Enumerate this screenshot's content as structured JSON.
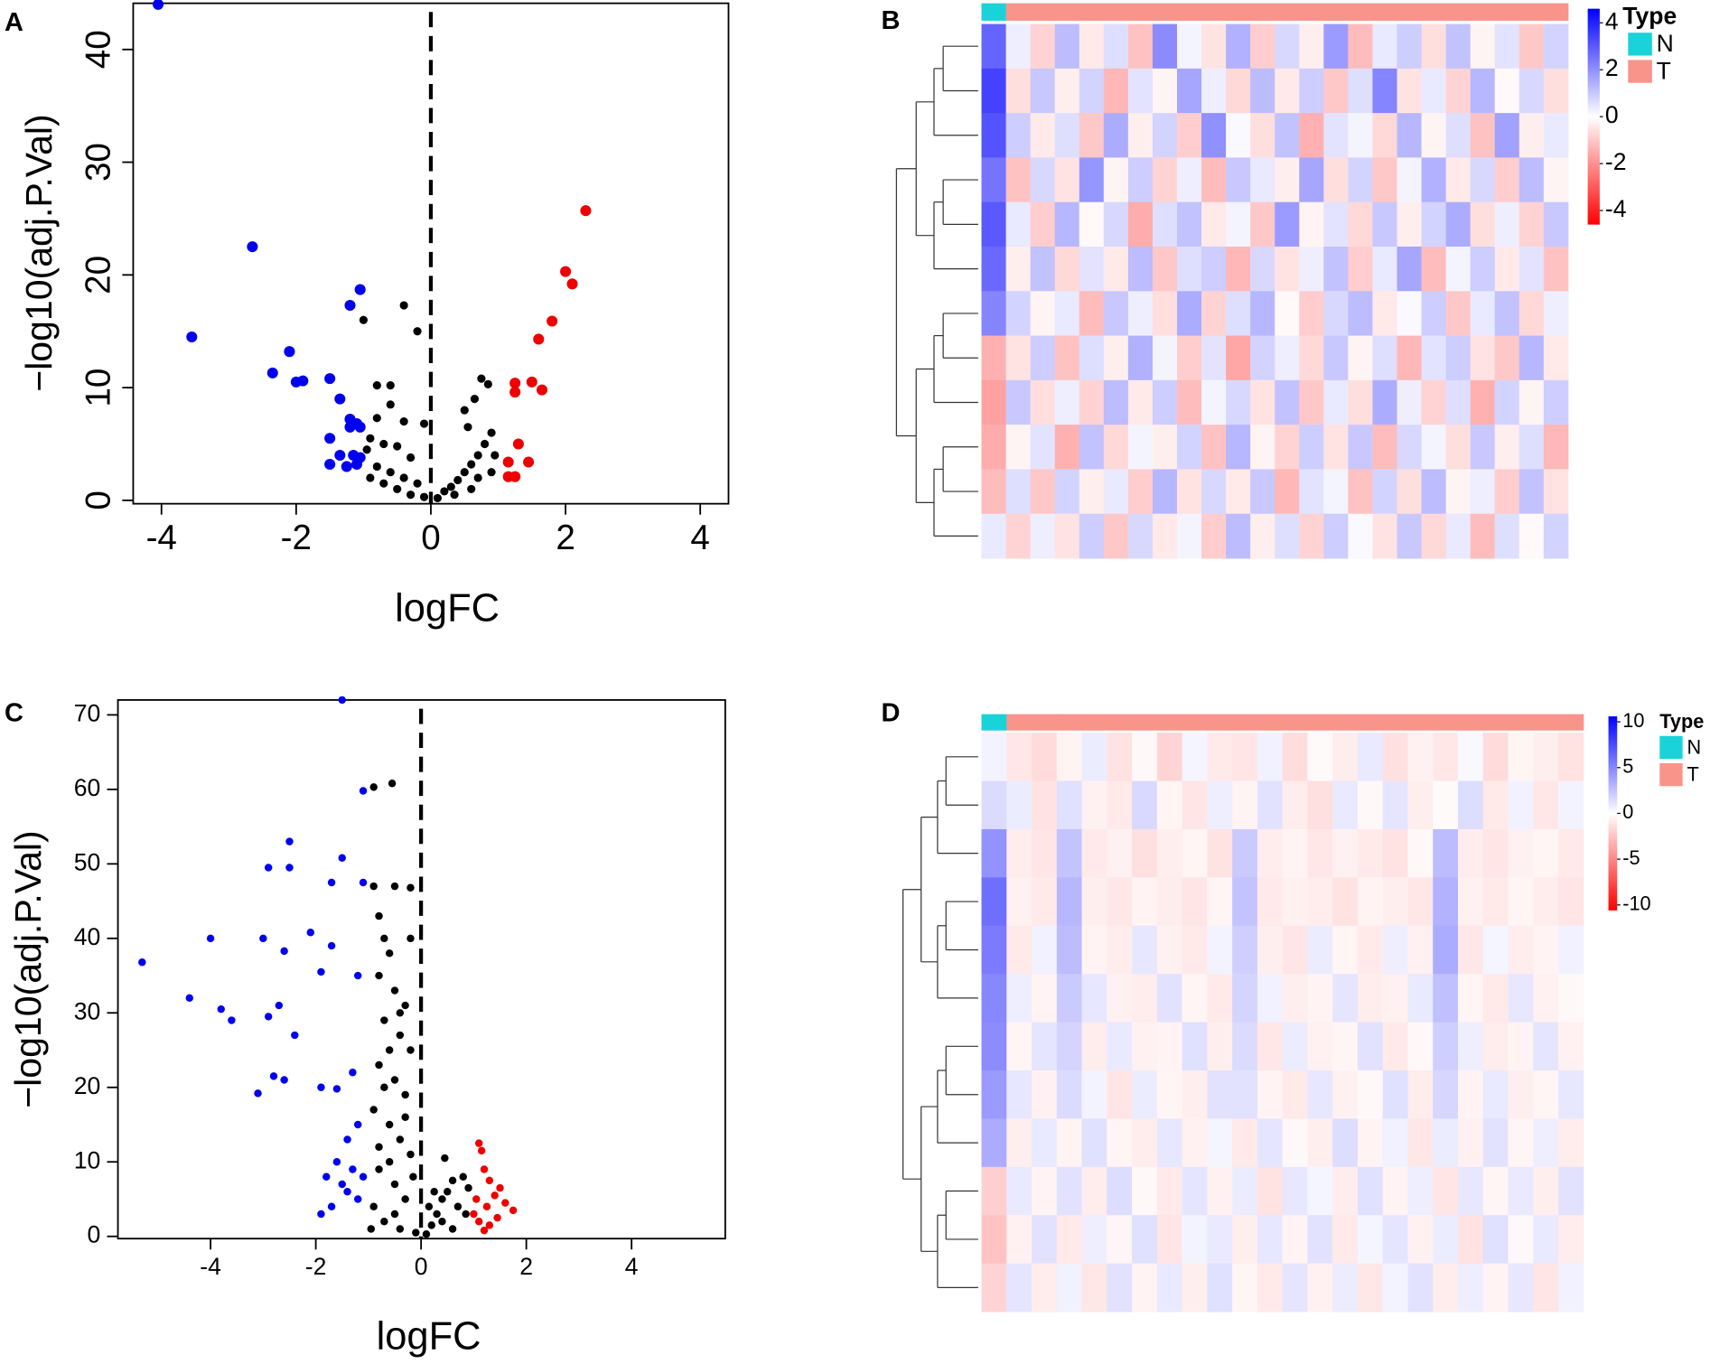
{
  "chart_data": [
    {
      "type": "scatter",
      "panel": "A",
      "x_label": "logFC",
      "y_label": "−log10(adj.P.Val)",
      "xlim": [
        -4.42,
        4.42
      ],
      "ylim": [
        -0.3,
        44.1
      ],
      "xticks": [
        -4,
        -2,
        0,
        2,
        4
      ],
      "yticks": [
        0,
        10,
        20,
        30,
        40
      ],
      "vline": 0,
      "series": [
        {
          "color": "#000000",
          "x": [
            -1.0,
            -0.4,
            -0.2,
            -0.6,
            -0.8,
            -0.6,
            -0.8,
            -0.4,
            -0.1,
            -0.9,
            -0.7,
            -0.5,
            -0.3,
            -0.8,
            -0.6,
            -0.4,
            -0.2,
            -0.5,
            -0.3,
            -0.1,
            -0.7,
            0.1,
            0.2,
            0.3,
            0.4,
            0.5,
            0.6,
            0.7,
            0.8,
            0.9,
            0.75,
            0.85,
            0.65,
            0.5,
            0.55,
            0.95,
            0.7,
            0.35,
            0.6,
            -0.9,
            -0.95,
            0.9
          ],
          "values": [
            16.0,
            17.3,
            15.0,
            10.2,
            10.2,
            8.5,
            7.3,
            7.0,
            6.8,
            5.5,
            5.0,
            4.8,
            3.8,
            3.0,
            2.5,
            2.0,
            1.5,
            1.0,
            0.5,
            0.3,
            1.5,
            0.2,
            0.8,
            1.2,
            1.8,
            2.5,
            3.2,
            4.0,
            5.0,
            6.0,
            10.8,
            10.3,
            9.0,
            8.0,
            6.5,
            4.0,
            2.0,
            0.5,
            1.0,
            2.0,
            4.5,
            2.5
          ]
        },
        {
          "color": "#0000ee",
          "x": [
            -4.05,
            -2.65,
            -3.55,
            -1.2,
            -1.05,
            -2.1,
            -2.35,
            -2.0,
            -1.9,
            -1.5,
            -1.35,
            -1.2,
            -1.1,
            -1.05,
            -1.2,
            -1.5,
            -1.35,
            -1.15,
            -1.05,
            -1.5,
            -1.25,
            -1.1
          ],
          "values": [
            44,
            22.5,
            14.5,
            17.3,
            18.7,
            13.2,
            11.3,
            10.5,
            10.6,
            10.8,
            9.0,
            7.2,
            6.8,
            6.5,
            6.5,
            5.5,
            4.0,
            4.0,
            3.8,
            3.2,
            3.0,
            3.2
          ]
        },
        {
          "color": "#ee0000",
          "x": [
            2.3,
            2.0,
            2.1,
            1.8,
            1.6,
            1.25,
            1.25,
            1.5,
            1.65,
            1.3,
            1.45,
            1.15,
            1.15,
            1.25
          ],
          "values": [
            25.7,
            20.3,
            19.2,
            15.9,
            14.3,
            10.4,
            9.6,
            10.5,
            9.8,
            5.0,
            3.4,
            3.4,
            2.1,
            2.1
          ]
        }
      ]
    },
    {
      "type": "heatmap",
      "panel": "B",
      "zlim": [
        -4.6,
        4.6
      ],
      "zticks": [
        4,
        2,
        0,
        -2,
        -4
      ],
      "colors": {
        "low": "#ff0000",
        "mid": "#ffffff",
        "high": "#0000ff"
      },
      "legend_title": "Type",
      "legend": [
        {
          "label": "N",
          "color": "#19d3d9"
        },
        {
          "label": "T",
          "color": "#f8948a"
        }
      ],
      "column_type": [
        "N",
        "T",
        "T",
        "T",
        "T",
        "T",
        "T",
        "T",
        "T",
        "T",
        "T",
        "T",
        "T",
        "T",
        "T",
        "T",
        "T",
        "T",
        "T",
        "T",
        "T",
        "T",
        "T",
        "T"
      ],
      "matrix": [
        [
          2.8,
          0.3,
          -0.8,
          1.2,
          -0.4,
          0.6,
          -1.1,
          2.1,
          0.2,
          -0.5,
          1.4,
          -0.9,
          0.7,
          -0.3,
          1.8,
          -1.2,
          0.4,
          0.9,
          -0.6,
          1.1,
          -0.2,
          0.5,
          -1.0,
          0.8
        ],
        [
          3.4,
          -0.6,
          1.0,
          -0.3,
          0.8,
          -1.3,
          0.5,
          -0.2,
          1.6,
          0.3,
          -0.7,
          1.2,
          -0.4,
          0.9,
          -1.0,
          0.6,
          2.2,
          -0.5,
          0.4,
          -0.8,
          1.3,
          -0.1,
          0.7,
          -0.6
        ],
        [
          3.1,
          0.9,
          -0.4,
          0.6,
          -1.0,
          1.5,
          -0.3,
          0.8,
          -0.9,
          2.0,
          0.1,
          -0.6,
          1.1,
          -1.4,
          0.5,
          0.2,
          -0.7,
          1.3,
          -0.2,
          0.6,
          -1.1,
          1.7,
          -0.3,
          0.4
        ],
        [
          2.5,
          -1.1,
          0.7,
          -0.5,
          1.9,
          -0.2,
          0.9,
          -0.8,
          0.3,
          -1.2,
          1.0,
          0.4,
          -0.3,
          1.6,
          -0.6,
          0.8,
          -1.0,
          0.2,
          1.4,
          -0.4,
          0.7,
          -0.9,
          1.2,
          -0.2
        ],
        [
          3.0,
          0.4,
          -0.9,
          1.3,
          -0.1,
          0.7,
          -1.5,
          0.6,
          1.1,
          -0.4,
          0.2,
          -1.0,
          1.8,
          -0.2,
          0.5,
          -0.7,
          1.0,
          -0.3,
          0.8,
          1.5,
          -0.6,
          0.3,
          -0.8,
          1.0
        ],
        [
          2.7,
          -0.3,
          1.1,
          -0.7,
          0.5,
          -0.4,
          1.2,
          -1.0,
          0.6,
          0.9,
          -1.3,
          0.7,
          -0.5,
          0.3,
          1.1,
          -0.9,
          0.4,
          1.6,
          -1.2,
          0.2,
          0.9,
          -0.4,
          0.5,
          -1.1
        ],
        [
          2.2,
          0.8,
          -0.2,
          0.4,
          -1.2,
          1.0,
          0.3,
          -0.6,
          1.5,
          -0.8,
          0.6,
          1.3,
          -0.1,
          -0.9,
          0.7,
          1.2,
          -0.4,
          0.1,
          0.9,
          -1.0,
          0.4,
          1.1,
          -0.7,
          0.3
        ],
        [
          -1.4,
          -0.5,
          0.9,
          -1.1,
          0.6,
          -0.3,
          1.4,
          0.2,
          -0.9,
          0.5,
          -1.6,
          0.8,
          0.3,
          -0.7,
          1.0,
          -0.2,
          0.6,
          -1.3,
          0.5,
          0.9,
          -0.5,
          -1.0,
          1.3,
          -0.4
        ],
        [
          -1.7,
          1.0,
          -0.6,
          0.3,
          -0.8,
          1.2,
          -0.4,
          0.9,
          -1.2,
          0.2,
          0.7,
          -0.5,
          1.1,
          -1.0,
          0.4,
          -0.6,
          1.5,
          0.3,
          -0.8,
          0.6,
          -1.4,
          0.8,
          -0.2,
          0.9
        ],
        [
          -1.5,
          -0.2,
          0.5,
          -1.4,
          1.1,
          -0.7,
          0.2,
          -0.3,
          0.8,
          -1.1,
          1.3,
          -0.2,
          -0.8,
          0.9,
          -0.5,
          1.0,
          -1.2,
          0.7,
          0.2,
          -0.6,
          1.0,
          -0.3,
          0.6,
          -1.3
        ],
        [
          -1.2,
          0.6,
          -1.0,
          0.8,
          -0.3,
          0.4,
          -0.9,
          1.3,
          -0.5,
          0.7,
          -0.4,
          1.0,
          -1.3,
          0.5,
          0.2,
          -1.1,
          0.8,
          -0.6,
          1.2,
          -0.2,
          0.3,
          -0.9,
          1.1,
          -0.5
        ],
        [
          0.4,
          -0.8,
          0.3,
          -0.5,
          0.9,
          -1.0,
          0.7,
          -0.4,
          0.2,
          -0.9,
          1.2,
          -0.3,
          0.6,
          -0.8,
          0.9,
          0.1,
          -0.5,
          1.0,
          -0.7,
          0.4,
          -1.2,
          0.6,
          -0.1,
          0.8
        ]
      ]
    },
    {
      "type": "scatter",
      "panel": "C",
      "x_label": "logFC",
      "y_label": "−log10(adj.P.Val)",
      "xlim": [
        -5.76,
        5.78
      ],
      "ylim": [
        -0.3,
        72
      ],
      "xticks": [
        -4,
        -2,
        0,
        2,
        4
      ],
      "yticks": [
        0,
        10,
        20,
        30,
        40,
        50,
        60,
        70
      ],
      "vline": 0,
      "series": [
        {
          "color": "#000000",
          "x": [
            -0.9,
            -0.55,
            -0.9,
            -0.5,
            -0.2,
            -0.8,
            -0.7,
            -0.2,
            -0.6,
            -0.8,
            -0.5,
            -0.3,
            -0.7,
            -0.4,
            -0.2,
            -0.8,
            -0.5,
            -0.3,
            -0.9,
            -0.6,
            -0.4,
            -0.2,
            -0.8,
            -0.5,
            -0.3,
            -0.9,
            -0.7,
            -0.4,
            -0.1,
            -0.6,
            -0.7,
            -0.4,
            -0.6,
            -0.3,
            -0.8,
            -0.5,
            0.1,
            0.2,
            0.3,
            0.4,
            0.5,
            0.6,
            0.8,
            0.7,
            0.4,
            0.9,
            0.45,
            0.25,
            0.6,
            0.85,
            0.15,
            -0.15,
            -0.95
          ],
          "values": [
            60.3,
            60.8,
            47,
            47,
            46.8,
            43,
            40,
            40,
            38,
            35,
            33,
            31,
            29,
            27,
            25,
            23,
            21,
            19,
            17,
            15,
            13,
            11,
            9,
            7,
            5,
            4,
            2,
            1,
            0.5,
            10,
            20,
            30,
            25,
            16,
            12,
            3,
            0.3,
            1.5,
            3,
            5,
            6,
            7.5,
            8,
            4,
            2,
            6.5,
            10.5,
            6,
            1,
            3,
            4,
            8,
            1
          ]
        },
        {
          "color": "#0000ee",
          "x": [
            -1.5,
            -1.1,
            -2.5,
            -2.9,
            -2.5,
            -1.5,
            -1.1,
            -1.7,
            -3.0,
            -4.0,
            -5.3,
            -2.1,
            -1.7,
            -2.6,
            -1.9,
            -1.2,
            -4.4,
            -3.8,
            -3.6,
            -2.9,
            -2.7,
            -2.4,
            -3.1,
            -2.8,
            -2.6,
            -1.9,
            -1.6,
            -1.3,
            -1.2,
            -1.4,
            -1.6,
            -1.8,
            -1.4,
            -1.2,
            -1.7,
            -1.9,
            -1.1,
            -1.3,
            -1.5
          ],
          "values": [
            72,
            59.8,
            53,
            49.5,
            49.5,
            50.8,
            47.5,
            47.5,
            40,
            40,
            36.8,
            40.8,
            39.0,
            38.3,
            35.5,
            35,
            32,
            30.5,
            29,
            29.5,
            31,
            27,
            19.2,
            21.5,
            21,
            20,
            19.8,
            22,
            15,
            13,
            10,
            8,
            6,
            5,
            4,
            3,
            8,
            9,
            7
          ]
        },
        {
          "color": "#ee0000",
          "x": [
            1.1,
            1.15,
            1.2,
            1.3,
            1.5,
            1.6,
            1.75,
            1.45,
            1.1,
            1.3,
            1.05,
            1.25,
            1.4,
            1.0,
            1.2
          ],
          "values": [
            12.5,
            11.5,
            9.0,
            7.5,
            6.5,
            4.5,
            3.5,
            2.5,
            2.0,
            1.5,
            5,
            4,
            5.5,
            3,
            0.8
          ]
        }
      ]
    },
    {
      "type": "heatmap",
      "panel": "D",
      "zlim": [
        -10.6,
        10.6
      ],
      "zticks": [
        10,
        5,
        0,
        -5,
        -10
      ],
      "colors": {
        "low": "#ff0000",
        "mid": "#ffffff",
        "high": "#0000ff"
      },
      "legend_title": "Type",
      "legend": [
        {
          "label": "N",
          "color": "#19d3d9"
        },
        {
          "label": "T",
          "color": "#f8948a"
        }
      ],
      "column_type": [
        "N",
        "T",
        "T",
        "T",
        "T",
        "T",
        "T",
        "T",
        "T",
        "T",
        "T",
        "T",
        "T",
        "T",
        "T",
        "T",
        "T",
        "T",
        "T",
        "T",
        "T",
        "T",
        "T",
        "T"
      ],
      "matrix": [
        [
          0.5,
          -1.0,
          -1.5,
          -0.5,
          0.8,
          -1.2,
          -0.3,
          -1.8,
          0.4,
          -0.9,
          -1.1,
          0.6,
          -1.4,
          -0.2,
          -0.8,
          0.9,
          -1.3,
          -0.6,
          -1.0,
          0.3,
          -1.5,
          -0.4,
          -0.7,
          -1.2
        ],
        [
          1.5,
          0.8,
          -1.2,
          1.3,
          -0.6,
          -0.9,
          1.6,
          -0.4,
          -1.1,
          0.7,
          -0.5,
          1.2,
          -0.8,
          -1.3,
          0.9,
          -0.3,
          1.1,
          -0.7,
          -0.2,
          1.4,
          -0.9,
          0.6,
          -1.0,
          0.5
        ],
        [
          4.5,
          -0.8,
          -1.1,
          2.5,
          -0.9,
          -0.6,
          -1.3,
          -0.7,
          -0.4,
          -1.2,
          2.2,
          -0.8,
          -0.5,
          -1.0,
          -0.6,
          -0.9,
          -1.2,
          -0.3,
          2.8,
          -0.8,
          -1.1,
          -0.6,
          -0.4,
          -0.9
        ],
        [
          6.0,
          -0.6,
          -0.9,
          3.0,
          -0.7,
          -1.0,
          -0.5,
          -0.8,
          -1.1,
          -0.4,
          2.5,
          -0.9,
          -0.6,
          -0.8,
          -1.2,
          -0.5,
          -0.7,
          -1.0,
          3.2,
          -0.6,
          -0.9,
          -0.4,
          -0.8,
          -1.1
        ],
        [
          5.5,
          -0.9,
          0.6,
          2.8,
          -0.5,
          -0.8,
          1.0,
          -0.6,
          -0.9,
          0.5,
          2.0,
          -0.7,
          -1.1,
          0.8,
          -0.4,
          -0.9,
          0.7,
          -0.6,
          3.5,
          -1.0,
          0.4,
          -0.8,
          -0.5,
          0.6
        ],
        [
          5.0,
          0.7,
          -0.5,
          2.2,
          1.0,
          -0.6,
          -0.8,
          1.2,
          -0.4,
          -0.9,
          1.8,
          0.6,
          -0.7,
          -0.5,
          1.1,
          -0.8,
          -0.6,
          0.9,
          2.6,
          -0.4,
          -0.9,
          1.0,
          -0.6,
          -0.3
        ],
        [
          4.8,
          -0.4,
          1.1,
          1.8,
          -0.8,
          0.9,
          -0.6,
          -0.5,
          1.3,
          -0.7,
          1.5,
          -1.0,
          0.8,
          -0.6,
          -0.4,
          1.2,
          -0.9,
          -0.3,
          2.0,
          0.7,
          -0.8,
          -0.5,
          1.1,
          -0.6
        ],
        [
          4.2,
          1.0,
          -0.6,
          1.5,
          0.5,
          -1.1,
          0.8,
          -0.4,
          -0.7,
          1.2,
          1.2,
          -0.5,
          -0.9,
          1.0,
          -0.6,
          -0.3,
          1.3,
          -0.8,
          1.7,
          -0.5,
          0.9,
          -0.7,
          -0.4,
          1.0
        ],
        [
          3.5,
          -0.7,
          0.9,
          -0.5,
          1.3,
          -0.4,
          -0.8,
          1.0,
          -0.6,
          0.4,
          -0.9,
          1.1,
          -0.3,
          -0.7,
          1.4,
          -0.5,
          0.6,
          -1.0,
          0.8,
          -0.6,
          1.2,
          -0.4,
          0.7,
          -0.8
        ],
        [
          -2.0,
          0.9,
          -0.5,
          1.2,
          -0.8,
          1.4,
          -0.3,
          -0.9,
          1.1,
          -0.6,
          0.8,
          -1.2,
          1.0,
          0.4,
          -0.8,
          1.3,
          -0.5,
          0.7,
          -1.1,
          1.0,
          -0.4,
          0.9,
          -0.7,
          1.2
        ],
        [
          -2.5,
          -0.6,
          1.2,
          -0.9,
          0.7,
          -0.4,
          1.3,
          -1.1,
          0.5,
          0.9,
          -0.7,
          1.0,
          -0.5,
          1.2,
          -0.9,
          0.4,
          1.1,
          -0.6,
          0.8,
          -1.2,
          1.3,
          -0.3,
          0.9,
          -0.8
        ],
        [
          -1.8,
          1.1,
          -0.8,
          0.6,
          -1.0,
          1.2,
          -0.5,
          0.9,
          -0.7,
          1.3,
          -0.4,
          -0.9,
          1.1,
          -0.6,
          0.8,
          -1.0,
          0.5,
          1.2,
          -0.8,
          0.7,
          -0.5,
          1.0,
          -1.1,
          0.6
        ]
      ]
    }
  ]
}
